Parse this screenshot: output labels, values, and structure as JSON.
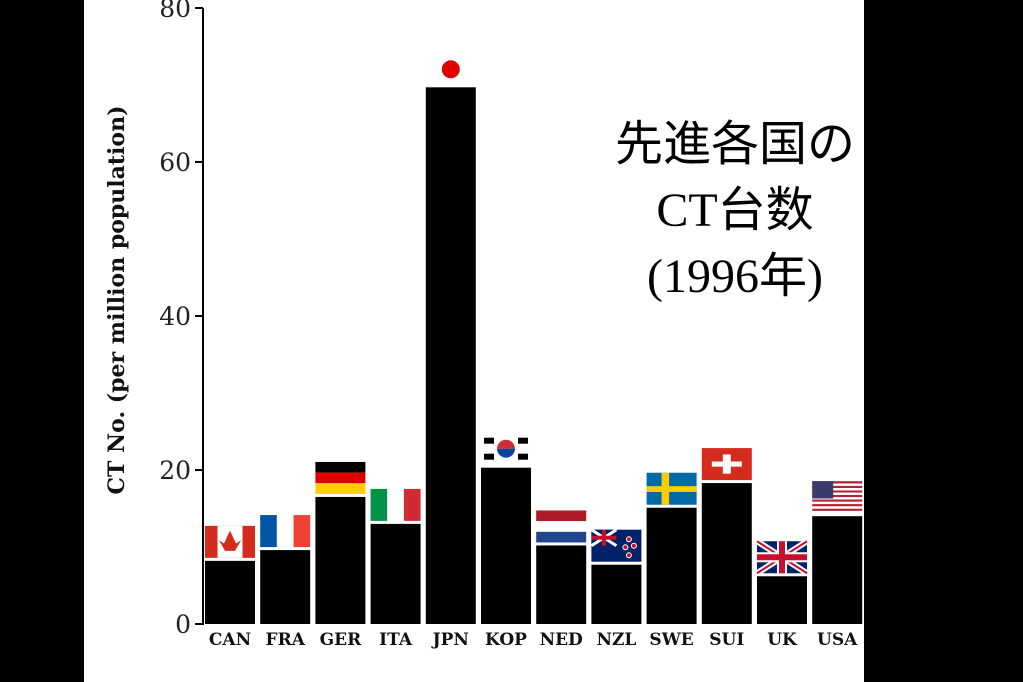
{
  "chart_data": {
    "type": "bar",
    "title_lines": [
      "先進各国の",
      "CT台数",
      "(1996年)"
    ],
    "ylabel": "CT No. (per million population)",
    "xlabel": "",
    "ylim": [
      0,
      80
    ],
    "yticks": [
      0,
      20,
      40,
      60,
      80
    ],
    "categories": [
      "CAN",
      "FRA",
      "GER",
      "ITA",
      "JPN",
      "KOP",
      "NED",
      "NZL",
      "SWE",
      "SUI",
      "UK",
      "USA"
    ],
    "values": [
      8.2,
      9.6,
      16.5,
      13.0,
      69.7,
      20.3,
      10.2,
      7.7,
      15.1,
      18.3,
      6.2,
      14.0
    ],
    "flags": [
      "canada-flag",
      "france-flag",
      "germany-flag",
      "italy-flag",
      "japan-flag",
      "korea-flag",
      "netherlands-flag",
      "new-zealand-flag",
      "sweden-flag",
      "switzerland-flag",
      "uk-flag",
      "usa-flag"
    ],
    "bar_color": "#000000",
    "grid": false
  }
}
